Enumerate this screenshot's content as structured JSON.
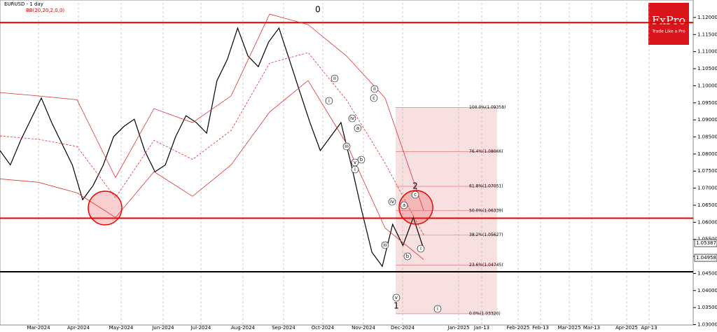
{
  "chart_data": {
    "type": "line",
    "title": "EURUSD - 1 day",
    "subtitle": "BB(20,20,2,0,0)",
    "brand": {
      "name": "FxPro",
      "tagline": "Trade Like a Pro"
    },
    "x_labels": [
      "Mar-2024",
      "Apr-2024",
      "May-2024",
      "Jun-2024",
      "Jul-2024",
      "Aug-2024",
      "Sep-2024",
      "Oct-2024",
      "Nov-2024",
      "Dec-2024",
      "Jan-2025",
      "Jan-13",
      "Feb-2025",
      "Feb-13",
      "Mar-2025",
      "Mar-13",
      "Apr-2025",
      "Apr-13"
    ],
    "ylim": [
      1.0299,
      1.1243
    ],
    "yticks": [
      {
        "value": 1.03,
        "label": "1.03000"
      },
      {
        "value": 1.035,
        "label": "1.03500"
      },
      {
        "value": 1.04,
        "label": "1.04000"
      },
      {
        "value": 1.045,
        "label": "1.04500"
      },
      {
        "value": 1.05,
        "label": "1.05000"
      },
      {
        "value": 1.055,
        "label": "1.05500"
      },
      {
        "value": 1.06,
        "label": "1.06000"
      },
      {
        "value": 1.065,
        "label": "1.06500"
      },
      {
        "value": 1.07,
        "label": "1.07000"
      },
      {
        "value": 1.075,
        "label": "1.07500"
      },
      {
        "value": 1.08,
        "label": "1.08000"
      },
      {
        "value": 1.085,
        "label": "1.08500"
      },
      {
        "value": 1.09,
        "label": "1.09000"
      },
      {
        "value": 1.095,
        "label": "1.09500"
      },
      {
        "value": 1.1,
        "label": "1.10000"
      },
      {
        "value": 1.105,
        "label": "1.10500"
      },
      {
        "value": 1.11,
        "label": "1.11000"
      },
      {
        "value": 1.115,
        "label": "1.11500"
      },
      {
        "value": 1.12,
        "label": "1.12000"
      }
    ],
    "series": [
      {
        "name": "EURUSD",
        "color": "#000000",
        "values": [
          1.081,
          1.0768,
          1.084,
          1.0902,
          1.0964,
          1.0892,
          1.083,
          1.0768,
          1.0666,
          1.0707,
          1.0768,
          1.0851,
          1.0881,
          1.0902,
          1.081,
          1.0748,
          1.0768,
          1.0851,
          1.0912,
          1.0892,
          1.0861,
          1.1015,
          1.1077,
          1.1169,
          1.1087,
          1.1056,
          1.1128,
          1.1169,
          1.1077,
          1.0984,
          1.0892,
          1.081,
          1.0851,
          1.0892,
          1.0768,
          1.0635,
          1.0512,
          1.0471,
          1.0594,
          1.0532,
          1.0614,
          1.0522
        ]
      },
      {
        "name": "BB upper",
        "color": "#e03030",
        "values": [
          1.098,
          1.097,
          1.0959,
          1.0731,
          1.0933,
          1.0892,
          1.097,
          1.121,
          1.1179,
          1.1087,
          1.0964,
          1.0635
        ]
      },
      {
        "name": "BB middle",
        "color": "#e03030",
        "values": [
          1.0853,
          1.0843,
          1.0822,
          1.0672,
          1.084,
          1.0784,
          1.0869,
          1.1066,
          1.1097,
          1.0958,
          1.0773,
          1.0563
        ]
      },
      {
        "name": "BB lower",
        "color": "#e03030",
        "values": [
          1.0727,
          1.0717,
          1.0686,
          1.0614,
          1.0748,
          1.0676,
          1.0768,
          1.0923,
          1.1015,
          1.083,
          1.0583,
          1.0491
        ]
      }
    ],
    "levels": [
      {
        "value": 1.1185,
        "color": "#e00000"
      },
      {
        "value": 1.0612,
        "color": "#e00000"
      },
      {
        "value": 1.0455,
        "color": "#000000"
      }
    ],
    "fibonacci": {
      "color": "#f4cccc",
      "levels": [
        {
          "value": 1.09358,
          "label": "100.0%(1.09358)"
        },
        {
          "value": 1.08066,
          "label": "76.4%(1.08066)"
        },
        {
          "value": 1.07051,
          "label": "61.8%(1.07051)"
        },
        {
          "value": 1.06339,
          "label": "50.0%(1.06339)"
        },
        {
          "value": 1.05627,
          "label": "38.2%(1.05627)"
        },
        {
          "value": 1.04745,
          "label": "23.6%(1.04745)"
        },
        {
          "value": 1.0332,
          "label": "0.0%(1.03320)"
        }
      ]
    },
    "price_labels": [
      {
        "value": 1.05387,
        "label": "1.05387"
      },
      {
        "value": 1.04958,
        "label": "1.04958"
      }
    ],
    "wave_labels": [
      "0",
      "2",
      "1",
      "ii",
      "i",
      "iv",
      "a",
      "iii",
      "b",
      "v",
      "i",
      "ii",
      "c",
      "iv",
      "a",
      "c",
      "iii",
      "b",
      "i",
      "v",
      "i"
    ]
  }
}
